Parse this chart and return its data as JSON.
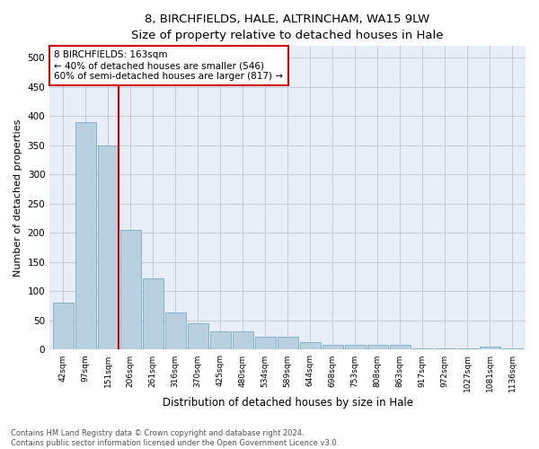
{
  "title": "8, BIRCHFIELDS, HALE, ALTRINCHAM, WA15 9LW",
  "subtitle": "Size of property relative to detached houses in Hale",
  "xlabel": "Distribution of detached houses by size in Hale",
  "ylabel": "Number of detached properties",
  "bar_labels": [
    "42sqm",
    "97sqm",
    "151sqm",
    "206sqm",
    "261sqm",
    "316sqm",
    "370sqm",
    "425sqm",
    "480sqm",
    "534sqm",
    "589sqm",
    "644sqm",
    "698sqm",
    "753sqm",
    "808sqm",
    "863sqm",
    "917sqm",
    "972sqm",
    "1027sqm",
    "1081sqm",
    "1136sqm"
  ],
  "bar_values": [
    80,
    390,
    350,
    205,
    122,
    63,
    45,
    32,
    32,
    22,
    23,
    13,
    9,
    8,
    9,
    9,
    3,
    3,
    3,
    5,
    3
  ],
  "bar_color": "#b8d0e0",
  "bar_edgecolor": "#7aaac8",
  "vline_x_index": 2,
  "vline_color": "#cc0000",
  "annotation_text": "8 BIRCHFIELDS: 163sqm\n← 40% of detached houses are smaller (546)\n60% of semi-detached houses are larger (817) →",
  "annotation_box_color": "#ffffff",
  "annotation_border_color": "#cc0000",
  "ylim": [
    0,
    520
  ],
  "yticks": [
    0,
    50,
    100,
    150,
    200,
    250,
    300,
    350,
    400,
    450,
    500
  ],
  "footer_line1": "Contains HM Land Registry data © Crown copyright and database right 2024.",
  "footer_line2": "Contains public sector information licensed under the Open Government Licence v3.0.",
  "bg_color": "#e8eef8",
  "fig_bg_color": "#ffffff",
  "grid_color": "#c8c8d8"
}
